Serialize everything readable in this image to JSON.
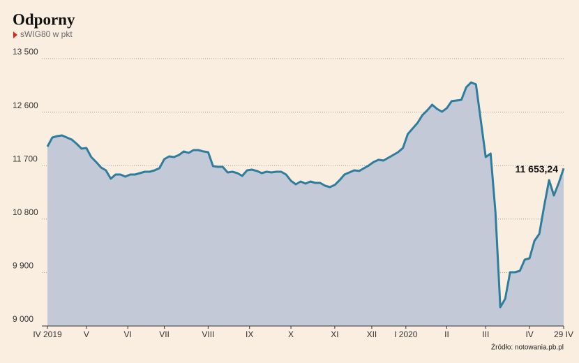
{
  "chart_data": {
    "type": "area-line",
    "title": "Odporny",
    "subtitle": "sWIG80 w pkt",
    "source": "Źródło: notowania.pb.pl",
    "line_color": "#2f7d9c",
    "fill_color": "#c3c9d6",
    "grid": true,
    "values": [
      12020,
      12172,
      12196,
      12208,
      12172,
      12137,
      12067,
      11985,
      11996,
      11843,
      11761,
      11668,
      11620,
      11479,
      11550,
      11550,
      11514,
      11550,
      11550,
      11573,
      11597,
      11597,
      11620,
      11656,
      11808,
      11855,
      11843,
      11879,
      11938,
      11914,
      11961,
      11961,
      11938,
      11926,
      11691,
      11679,
      11679,
      11585,
      11597,
      11573,
      11526,
      11620,
      11632,
      11609,
      11573,
      11597,
      11585,
      11597,
      11597,
      11550,
      11444,
      11385,
      11432,
      11397,
      11432,
      11409,
      11409,
      11362,
      11338,
      11374,
      11456,
      11550,
      11585,
      11620,
      11609,
      11656,
      11703,
      11761,
      11797,
      11785,
      11832,
      11879,
      11926,
      11996,
      12231,
      12325,
      12419,
      12549,
      12631,
      12725,
      12654,
      12607,
      12666,
      12784,
      12795,
      12807,
      13019,
      13101,
      13066,
      12455,
      11843,
      11902,
      10904,
      9317,
      9458,
      9905,
      9905,
      9928,
      10116,
      10140,
      10434,
      10551,
      11021,
      11456,
      11197,
      11409,
      11653.24
    ],
    "value_labels": [
      null,
      null,
      null,
      null,
      null,
      null,
      null,
      null,
      null,
      null,
      null,
      null,
      null,
      null,
      null,
      null,
      null,
      null,
      null,
      null,
      null,
      null,
      null,
      null,
      null,
      null,
      null,
      null,
      null,
      null,
      null,
      null,
      null,
      null,
      null,
      null,
      null,
      null,
      null,
      null,
      null,
      null,
      null,
      null,
      null,
      null,
      null,
      null,
      null,
      null,
      null,
      null,
      null,
      null,
      null,
      null,
      null,
      null,
      null,
      null,
      null,
      null,
      null,
      null,
      null,
      null,
      null,
      null,
      null,
      null,
      null,
      null,
      null,
      null,
      null,
      null,
      null,
      null,
      null,
      null,
      null,
      null,
      null,
      null,
      null,
      null,
      null,
      null,
      null,
      null,
      null,
      null,
      null,
      null,
      null,
      null,
      null,
      null,
      null,
      null,
      null,
      null,
      null,
      null,
      null,
      null,
      "11 653,24"
    ],
    "xlim": [
      0,
      106
    ],
    "xticks": [
      {
        "value": 0,
        "label": "IV 2019"
      },
      {
        "value": 8,
        "label": "V"
      },
      {
        "value": 16.5,
        "label": "VI"
      },
      {
        "value": 24,
        "label": "VII"
      },
      {
        "value": 33,
        "label": "VIII"
      },
      {
        "value": 41.5,
        "label": "IX"
      },
      {
        "value": 50,
        "label": "X"
      },
      {
        "value": 59,
        "label": "XI"
      },
      {
        "value": 66.6,
        "label": "XII"
      },
      {
        "value": 73.6,
        "label": "I 2020"
      },
      {
        "value": 82,
        "label": "II"
      },
      {
        "value": 90,
        "label": "III"
      },
      {
        "value": 99,
        "label": "IV"
      },
      {
        "value": 106,
        "label": "29 IV"
      }
    ],
    "ylim": [
      9000,
      13500
    ],
    "yticks": [
      {
        "value": 9000,
        "label": "9 000"
      },
      {
        "value": 9900,
        "label": "9 900"
      },
      {
        "value": 10800,
        "label": "10 800"
      },
      {
        "value": 11700,
        "label": "11 700"
      },
      {
        "value": 12600,
        "label": "12 600"
      },
      {
        "value": 13500,
        "label": "13 500"
      }
    ]
  }
}
